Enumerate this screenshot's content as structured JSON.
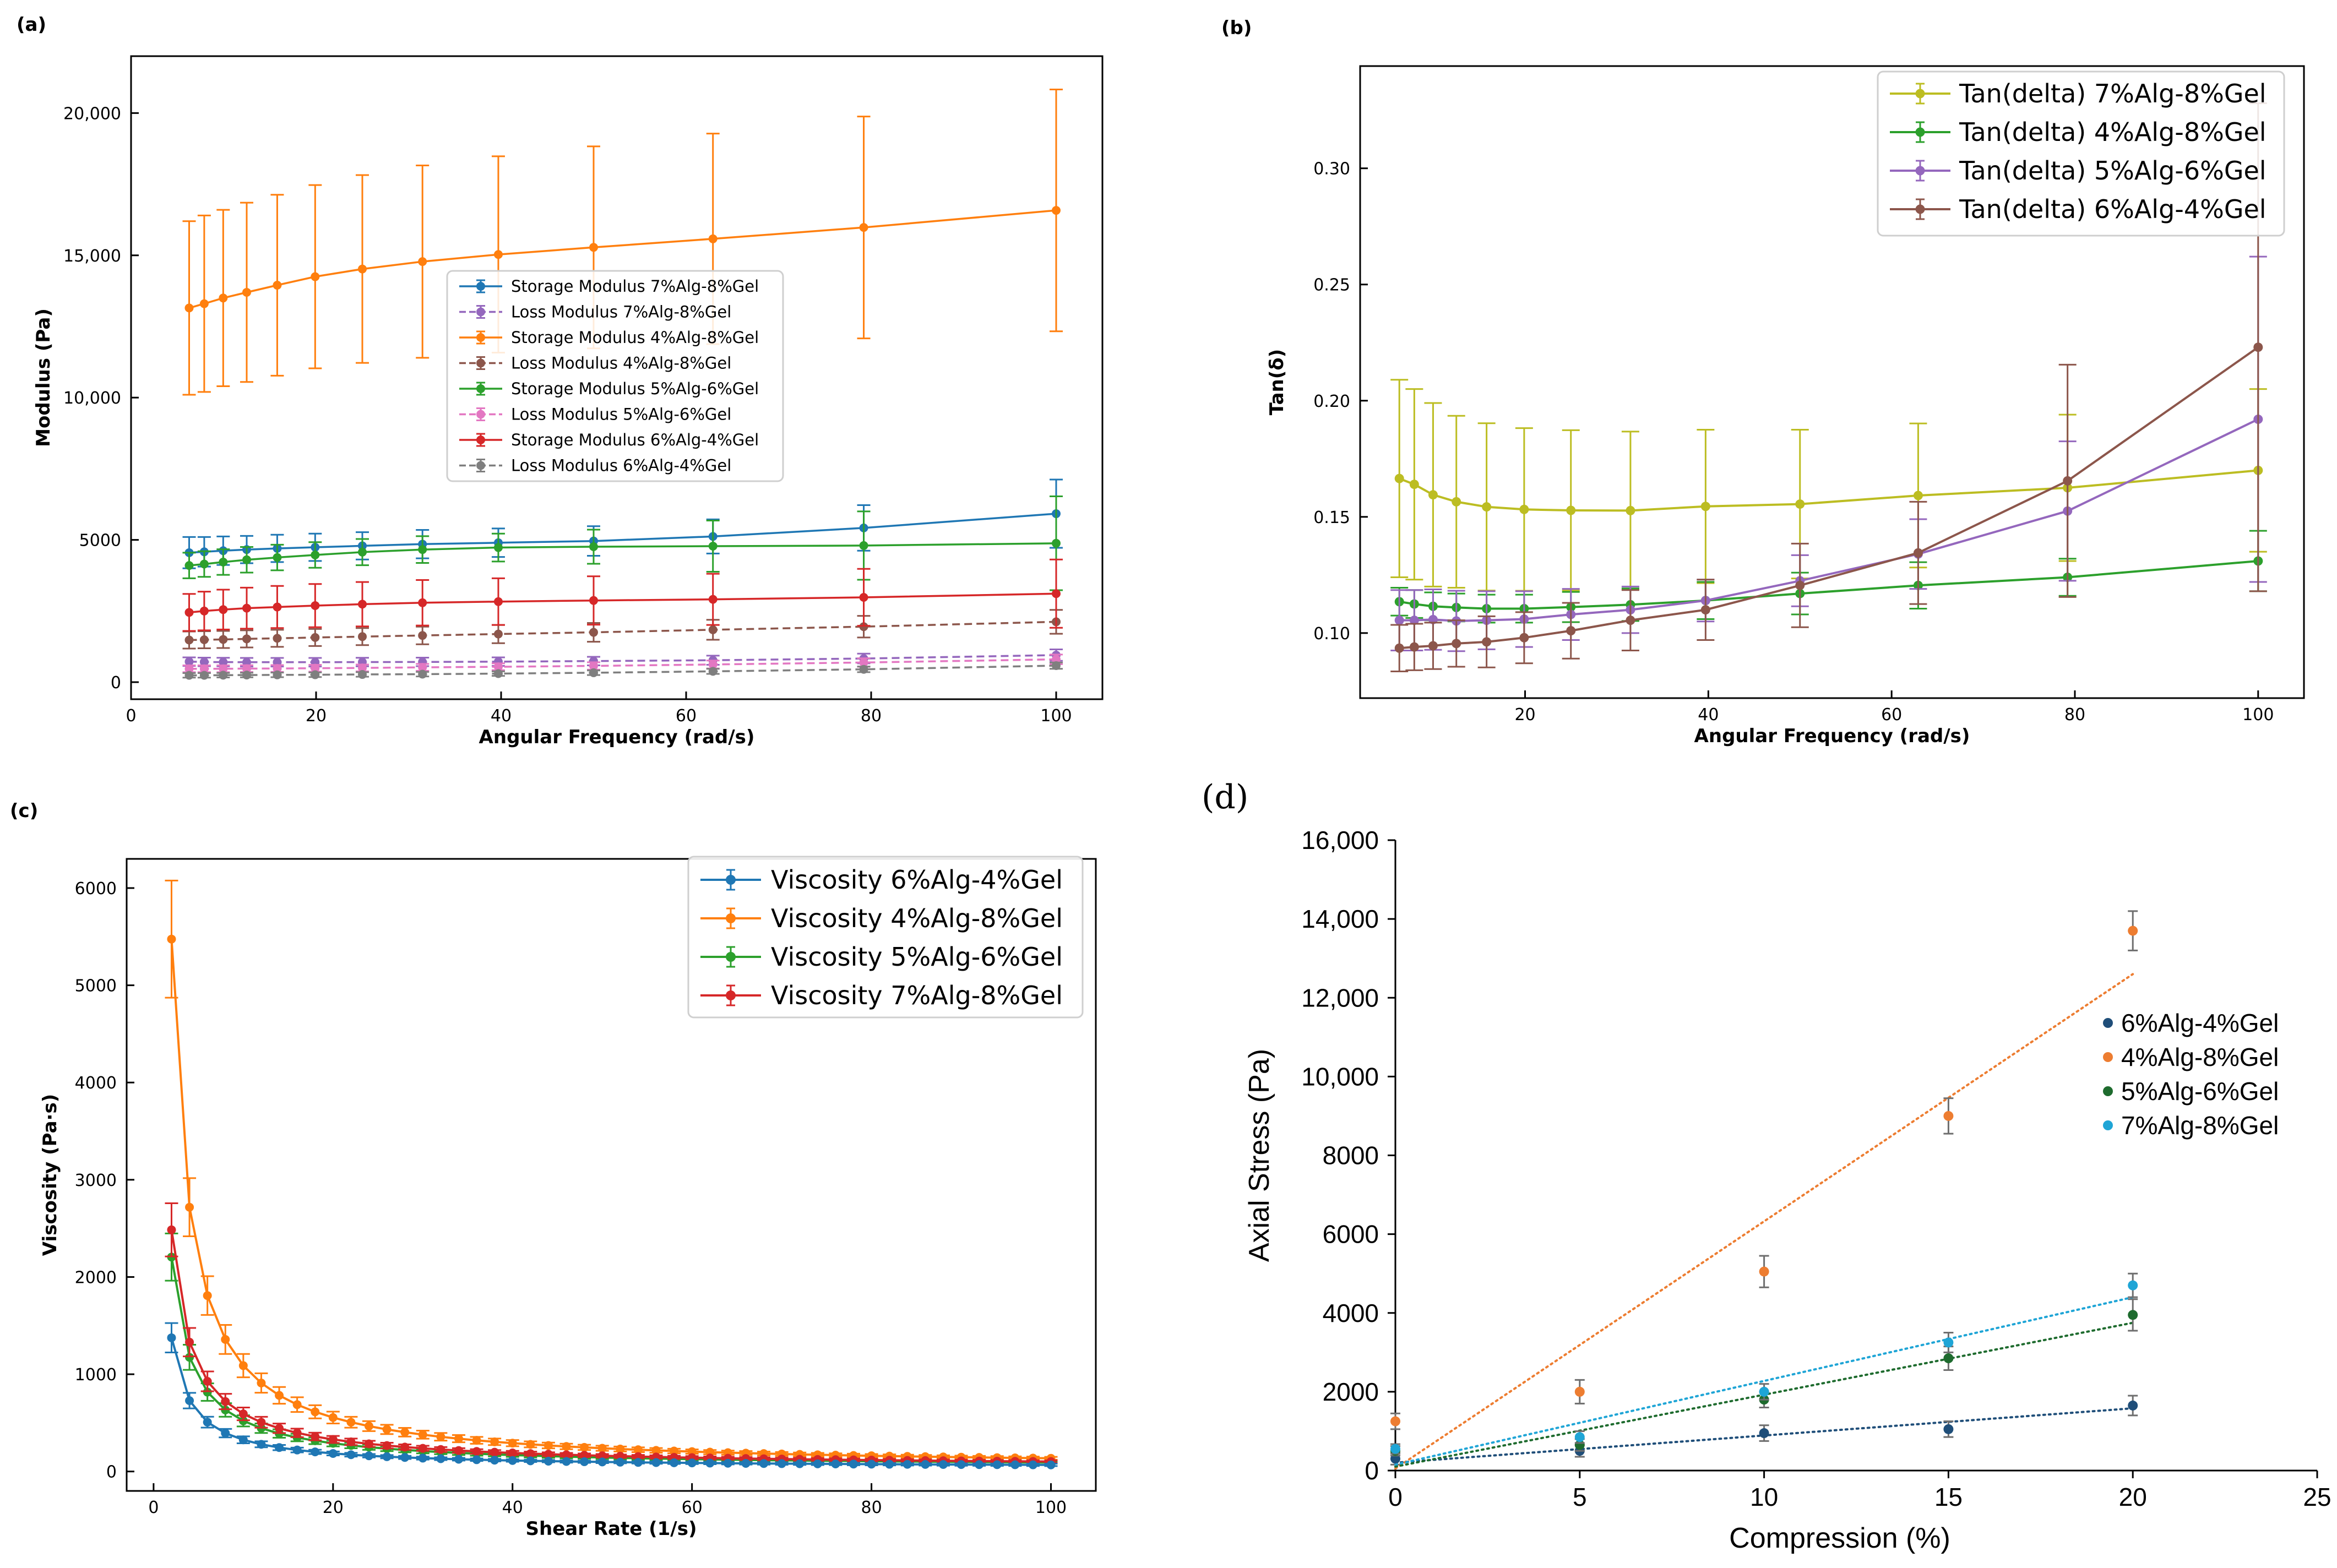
{
  "chart_data": [
    {
      "panel": "(a)",
      "type": "line",
      "xlabel": "Angular Frequency (rad/s)",
      "ylabel": "Modulus (Pa)",
      "xlim": [
        0,
        105
      ],
      "ylim": [
        -600,
        22000
      ],
      "xticks": [
        0,
        20,
        40,
        60,
        80,
        100
      ],
      "yticks": [
        0,
        5000,
        10000,
        15000,
        20000
      ],
      "ytick_labels": [
        "0",
        "5000",
        "10,000",
        "15,000",
        "20,000"
      ],
      "legend_position": "center",
      "x": [
        6.28,
        7.91,
        9.96,
        12.5,
        15.8,
        19.9,
        25.0,
        31.5,
        39.7,
        50.0,
        62.9,
        79.2,
        100
      ],
      "series": [
        {
          "name": "Storage Modulus 7%Alg-8%Gel",
          "color": "#1f77b4",
          "style": "solid",
          "values": [
            4550,
            4580,
            4620,
            4660,
            4700,
            4740,
            4790,
            4850,
            4900,
            4960,
            5120,
            5420,
            5920
          ],
          "errors": [
            550,
            520,
            500,
            480,
            480,
            480,
            480,
            500,
            500,
            520,
            600,
            800,
            1200
          ]
        },
        {
          "name": "Loss Modulus 7%Alg-8%Gel",
          "color": "#9467bd",
          "style": "dashed",
          "values": [
            720,
            710,
            705,
            700,
            700,
            700,
            705,
            710,
            720,
            740,
            770,
            830,
            950
          ],
          "errors": [
            150,
            150,
            150,
            150,
            150,
            150,
            150,
            150,
            150,
            150,
            160,
            170,
            200
          ]
        },
        {
          "name": "Storage Modulus 4%Alg-8%Gel",
          "color": "#ff7f0e",
          "style": "solid",
          "values": [
            13150,
            13300,
            13500,
            13700,
            13950,
            14250,
            14520,
            14780,
            15030,
            15280,
            15580,
            15980,
            16580
          ],
          "errors": [
            3050,
            3100,
            3100,
            3150,
            3180,
            3220,
            3300,
            3380,
            3450,
            3550,
            3700,
            3900,
            4250
          ]
        },
        {
          "name": "Loss Modulus 4%Alg-8%Gel",
          "color": "#8c564b",
          "style": "dashed",
          "values": [
            1480,
            1490,
            1500,
            1520,
            1540,
            1570,
            1600,
            1640,
            1690,
            1750,
            1840,
            1950,
            2120
          ],
          "errors": [
            300,
            300,
            300,
            300,
            300,
            300,
            300,
            310,
            320,
            330,
            350,
            380,
            420
          ]
        },
        {
          "name": "Storage Modulus 5%Alg-6%Gel",
          "color": "#2ca02c",
          "style": "solid",
          "values": [
            4100,
            4150,
            4220,
            4300,
            4380,
            4470,
            4570,
            4660,
            4730,
            4760,
            4780,
            4800,
            4880
          ],
          "errors": [
            450,
            450,
            450,
            450,
            450,
            450,
            460,
            470,
            490,
            600,
            900,
            1200,
            1650
          ]
        },
        {
          "name": "Loss Modulus 5%Alg-6%Gel",
          "color": "#e377c2",
          "style": "dashed",
          "values": [
            470,
            470,
            470,
            475,
            480,
            490,
            500,
            520,
            540,
            570,
            620,
            690,
            800
          ],
          "errors": [
            120,
            120,
            120,
            120,
            120,
            120,
            120,
            120,
            120,
            130,
            140,
            150,
            170
          ]
        },
        {
          "name": "Storage Modulus 6%Alg-4%Gel",
          "color": "#d62728",
          "style": "solid",
          "values": [
            2450,
            2500,
            2550,
            2600,
            2640,
            2690,
            2740,
            2790,
            2830,
            2870,
            2910,
            2980,
            3110
          ],
          "errors": [
            650,
            680,
            700,
            720,
            740,
            760,
            780,
            800,
            820,
            850,
            900,
            1000,
            1200
          ]
        },
        {
          "name": "Loss Modulus 6%Alg-4%Gel",
          "color": "#7f7f7f",
          "style": "dashed",
          "values": [
            240,
            240,
            245,
            250,
            255,
            260,
            270,
            280,
            300,
            330,
            380,
            450,
            580
          ],
          "errors": [
            80,
            80,
            80,
            80,
            80,
            80,
            80,
            80,
            80,
            80,
            90,
            100,
            110
          ]
        }
      ]
    },
    {
      "panel": "(b)",
      "type": "line",
      "xlabel": "Angular Frequency (rad/s)",
      "ylabel": "Tan(δ)",
      "xlim": [
        2,
        105
      ],
      "ylim": [
        0.072,
        0.344
      ],
      "xticks": [
        20,
        40,
        60,
        80,
        100
      ],
      "yticks": [
        0.1,
        0.15,
        0.2,
        0.25,
        0.3
      ],
      "ytick_labels": [
        "0.10",
        "0.15",
        "0.20",
        "0.25",
        "0.30"
      ],
      "legend_position": "top-right",
      "x": [
        6.28,
        7.91,
        9.96,
        12.5,
        15.8,
        19.9,
        25.0,
        31.5,
        39.7,
        50.0,
        62.9,
        79.2,
        100
      ],
      "series": [
        {
          "name": "Tan(delta) 7%Alg-8%Gel",
          "color": "#bcbd22",
          "values": [
            0.1665,
            0.164,
            0.1595,
            0.1565,
            0.1543,
            0.1532,
            0.1528,
            0.1527,
            0.1545,
            0.1555,
            0.1592,
            0.1625,
            0.17
          ],
          "errors": [
            0.0425,
            0.041,
            0.0395,
            0.037,
            0.036,
            0.035,
            0.0345,
            0.034,
            0.033,
            0.032,
            0.031,
            0.0315,
            0.035
          ]
        },
        {
          "name": "Tan(delta) 4%Alg-8%Gel",
          "color": "#2ca02c",
          "values": [
            0.1135,
            0.1125,
            0.1115,
            0.111,
            0.1105,
            0.1105,
            0.1112,
            0.1122,
            0.114,
            0.117,
            0.1205,
            0.124,
            0.131
          ],
          "errors": [
            0.006,
            0.006,
            0.006,
            0.006,
            0.006,
            0.006,
            0.0065,
            0.007,
            0.008,
            0.009,
            0.01,
            0.008,
            0.013
          ]
        },
        {
          "name": "Tan(delta) 5%Alg-6%Gel",
          "color": "#9467bd",
          "values": [
            0.1055,
            0.1055,
            0.1058,
            0.1052,
            0.1055,
            0.106,
            0.108,
            0.11,
            0.114,
            0.1225,
            0.134,
            0.1525,
            0.192
          ],
          "errors": [
            0.013,
            0.013,
            0.013,
            0.013,
            0.0125,
            0.012,
            0.011,
            0.01,
            0.009,
            0.011,
            0.015,
            0.03,
            0.07
          ]
        },
        {
          "name": "Tan(delta) 6%Alg-4%Gel",
          "color": "#8c564b",
          "values": [
            0.0935,
            0.094,
            0.0945,
            0.0955,
            0.0962,
            0.098,
            0.101,
            0.1055,
            0.11,
            0.1205,
            0.1345,
            0.1655,
            0.223
          ],
          "errors": [
            0.01,
            0.01,
            0.01,
            0.01,
            0.011,
            0.011,
            0.012,
            0.013,
            0.013,
            0.018,
            0.022,
            0.05,
            0.105
          ]
        }
      ]
    },
    {
      "panel": "(c)",
      "type": "line",
      "xlabel": "Shear Rate (1/s)",
      "ylabel": "Viscosity (Pa·s)",
      "xlim": [
        -3,
        105
      ],
      "ylim": [
        -200,
        6300
      ],
      "xticks": [
        0,
        20,
        40,
        60,
        80,
        100
      ],
      "yticks": [
        0,
        1000,
        2000,
        3000,
        4000,
        5000,
        6000
      ],
      "ytick_labels": [
        "0",
        "1000",
        "2000",
        "3000",
        "4000",
        "5000",
        "6000"
      ],
      "legend_position": "top-right",
      "x": [
        2,
        4,
        6,
        8,
        10,
        12,
        14,
        16,
        18,
        20,
        22,
        24,
        26,
        28,
        30,
        32,
        34,
        36,
        38,
        40,
        42,
        44,
        46,
        48,
        50,
        52,
        54,
        56,
        58,
        60,
        62,
        64,
        66,
        68,
        70,
        72,
        74,
        76,
        78,
        80,
        82,
        84,
        86,
        88,
        90,
        92,
        94,
        96,
        98,
        100
      ],
      "series": [
        {
          "name": "Viscosity 6%Alg-4%Gel",
          "color": "#1f77b4",
          "base": 1340,
          "exponent": 0.95
        },
        {
          "name": "Viscosity 4%Alg-8%Gel",
          "color": "#ff7f0e",
          "base": 5440,
          "exponent": 1.02
        },
        {
          "name": "Viscosity 5%Alg-6%Gel",
          "color": "#2ca02c",
          "base": 2170,
          "exponent": 0.93
        },
        {
          "name": "Viscosity 7%Alg-8%Gel",
          "color": "#d62728",
          "base": 2450,
          "exponent": 0.92
        }
      ]
    },
    {
      "panel": "(d)",
      "type": "scatter",
      "xlabel": "Compression (%)",
      "ylabel": "Axial Stress (Pa)",
      "xlim": [
        0,
        25
      ],
      "ylim": [
        0,
        16000
      ],
      "xticks": [
        0,
        5,
        10,
        15,
        20,
        25
      ],
      "yticks": [
        0,
        2000,
        4000,
        6000,
        8000,
        10000,
        12000,
        14000,
        16000
      ],
      "ytick_labels": [
        "0",
        "2000",
        "4000",
        "6000",
        "8000",
        "10,000",
        "12,000",
        "14,000",
        "16,000"
      ],
      "legend_position": "right",
      "x": [
        0,
        5,
        10,
        15,
        20
      ],
      "series": [
        {
          "name": "6%Alg-4%Gel",
          "color": "#1f4e79",
          "values": [
            300,
            500,
            950,
            1050,
            1650
          ],
          "errors": [
            150,
            150,
            200,
            200,
            250
          ],
          "trend": [
            200,
            1580
          ]
        },
        {
          "name": "4%Alg-8%Gel",
          "color": "#ed7d31",
          "values": [
            1250,
            2000,
            5050,
            9000,
            13700
          ],
          "errors": [
            200,
            300,
            400,
            450,
            500
          ],
          "trend": [
            50,
            12600
          ]
        },
        {
          "name": "5%Alg-6%Gel",
          "color": "#1e6b2e",
          "values": [
            500,
            650,
            1800,
            2850,
            3950
          ],
          "errors": [
            120,
            150,
            200,
            300,
            400
          ],
          "trend": [
            100,
            3750
          ]
        },
        {
          "name": "7%Alg-8%Gel",
          "color": "#1fa5d6",
          "values": [
            550,
            850,
            2000,
            3250,
            4700
          ],
          "errors": [
            120,
            150,
            200,
            250,
            300
          ],
          "trend": [
            150,
            4400
          ]
        }
      ]
    }
  ]
}
